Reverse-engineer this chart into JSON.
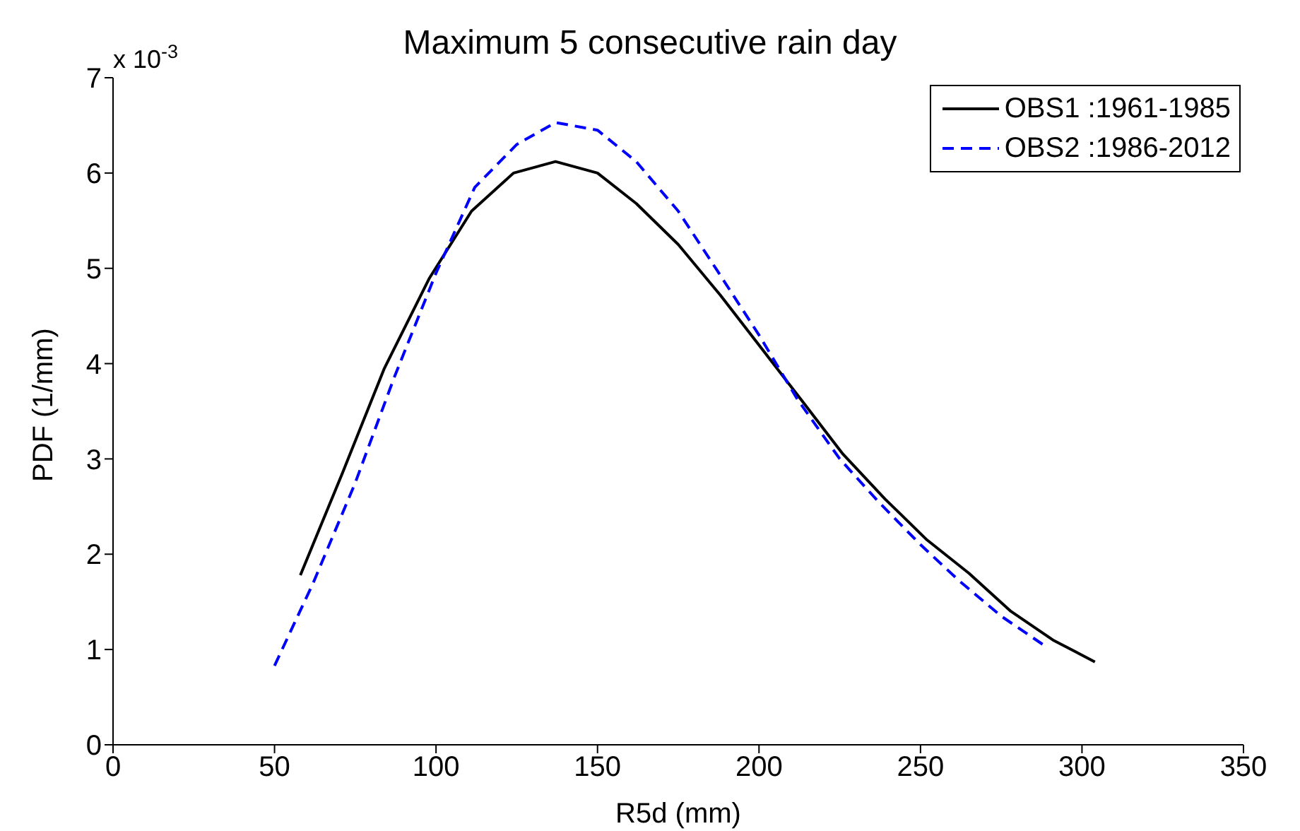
{
  "chart_data": {
    "type": "line",
    "title": "Maximum 5 consecutive rain day",
    "xlabel": "R5d (mm)",
    "ylabel": "PDF (1/mm)",
    "annotations": [
      "x 10$^{-3}$"
    ],
    "xlim": [
      0,
      350
    ],
    "xticks": [
      0,
      50,
      100,
      150,
      200,
      250,
      300,
      350
    ],
    "ylim": [
      0,
      7
    ],
    "yticks": [
      0,
      1,
      2,
      3,
      4,
      5,
      6,
      7
    ],
    "legend": "top right",
    "marker": "none",
    "series": [
      {
        "name": "OBS1 :1961-1985",
        "color": "#000000",
        "line_style": "solid",
        "x": [
          58,
          71,
          84,
          98,
          111,
          124,
          137,
          150,
          162,
          175,
          188,
          201,
          214,
          226,
          239,
          252,
          265,
          278,
          291,
          304
        ],
        "values": [
          1.78,
          2.85,
          3.95,
          4.9,
          5.6,
          6.0,
          6.12,
          6.0,
          5.68,
          5.25,
          4.72,
          4.15,
          3.58,
          3.05,
          2.58,
          2.15,
          1.8,
          1.4,
          1.1,
          0.87
        ]
      },
      {
        "name": "OBS2 :1986-2012",
        "color": "#0000ff",
        "line_style": "dashed",
        "x": [
          50,
          62,
          75,
          87,
          100,
          112,
          125,
          137,
          150,
          162,
          175,
          187,
          200,
          212,
          225,
          237,
          250,
          262,
          275,
          288
        ],
        "values": [
          0.83,
          1.7,
          2.75,
          3.85,
          4.95,
          5.85,
          6.3,
          6.53,
          6.45,
          6.12,
          5.6,
          4.98,
          4.3,
          3.62,
          3.0,
          2.55,
          2.1,
          1.72,
          1.35,
          1.05
        ]
      }
    ]
  }
}
